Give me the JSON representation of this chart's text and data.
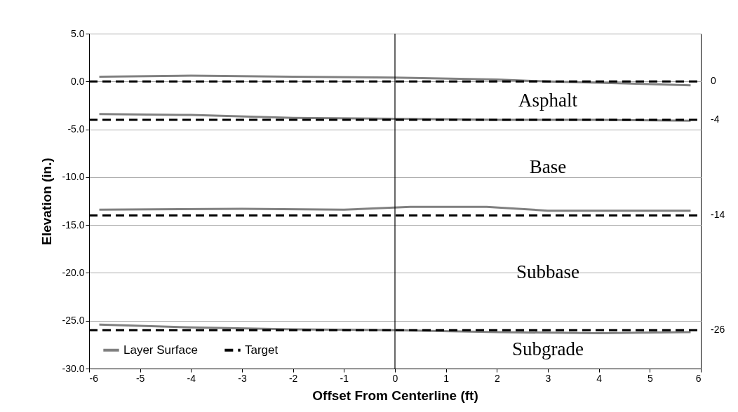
{
  "chart_data": {
    "type": "line",
    "xlabel": "Offset From Centerline (ft)",
    "ylabel": "Elevation (in.)",
    "xlim": [
      -6,
      6
    ],
    "xticks": [
      -6,
      -5,
      -4,
      -3,
      -2,
      -1,
      0,
      1,
      2,
      3,
      4,
      5,
      6
    ],
    "ylim": [
      -30,
      5
    ],
    "yticks": [
      {
        "value": 5,
        "label": "5.0"
      },
      {
        "value": 0,
        "label": "0.0"
      },
      {
        "value": -5,
        "label": "-5.0"
      },
      {
        "value": -10,
        "label": "-10.0"
      },
      {
        "value": -15,
        "label": "-15.0"
      },
      {
        "value": -20,
        "label": "-20.0"
      },
      {
        "value": -25,
        "label": "-25.0"
      },
      {
        "value": -30,
        "label": "-30.0"
      }
    ],
    "grid": "y",
    "legend": "bottom left",
    "series": [
      {
        "name": "Layer Surface",
        "color": "#808080",
        "line_style": "solid",
        "x": [
          -5.8,
          -4,
          -2,
          0,
          2,
          3,
          4.5,
          5.8
        ],
        "values": [
          0.5,
          0.6,
          0.5,
          0.4,
          0.2,
          0,
          -0.2,
          -0.4
        ]
      },
      {
        "color": "#808080",
        "line_style": "solid",
        "x": [
          -5.8,
          -4,
          -2,
          0,
          2,
          4,
          5.8
        ],
        "values": [
          -3.4,
          -3.5,
          -3.8,
          -3.9,
          -4.0,
          -4.0,
          -4.1
        ]
      },
      {
        "color": "#808080",
        "line_style": "solid",
        "x": [
          -5.8,
          -3,
          -1,
          0.3,
          1.8,
          3,
          5.8
        ],
        "values": [
          -13.4,
          -13.3,
          -13.4,
          -13.1,
          -13.1,
          -13.5,
          -13.5
        ]
      },
      {
        "color": "#808080",
        "line_style": "solid",
        "x": [
          -5.8,
          -4,
          -2,
          0,
          2,
          4,
          5.8
        ],
        "values": [
          -25.4,
          -25.7,
          -25.9,
          -26.0,
          -26.2,
          -26.3,
          -26.2
        ]
      },
      {
        "name": "Target",
        "color": "#000000",
        "line_style": "dashed",
        "x": [
          -6,
          6
        ],
        "values": [
          0,
          0
        ],
        "value_labels": [
          null,
          "0"
        ]
      },
      {
        "color": "#000000",
        "line_style": "dashed",
        "x": [
          -6,
          6
        ],
        "values": [
          -4,
          -4
        ],
        "value_labels": [
          null,
          "-4"
        ]
      },
      {
        "color": "#000000",
        "line_style": "dashed",
        "x": [
          -6,
          6
        ],
        "values": [
          -14,
          -14
        ],
        "value_labels": [
          null,
          "-14"
        ]
      },
      {
        "color": "#000000",
        "line_style": "dashed",
        "x": [
          -6,
          6
        ],
        "values": [
          -26,
          -26
        ],
        "value_labels": [
          null,
          "-26"
        ]
      }
    ],
    "ref_lines": [
      {
        "axis": "x",
        "value": 0,
        "color": "#000000"
      }
    ],
    "annotations": [
      "Asphalt",
      "Base",
      "Subbase",
      "Subgrade"
    ]
  }
}
